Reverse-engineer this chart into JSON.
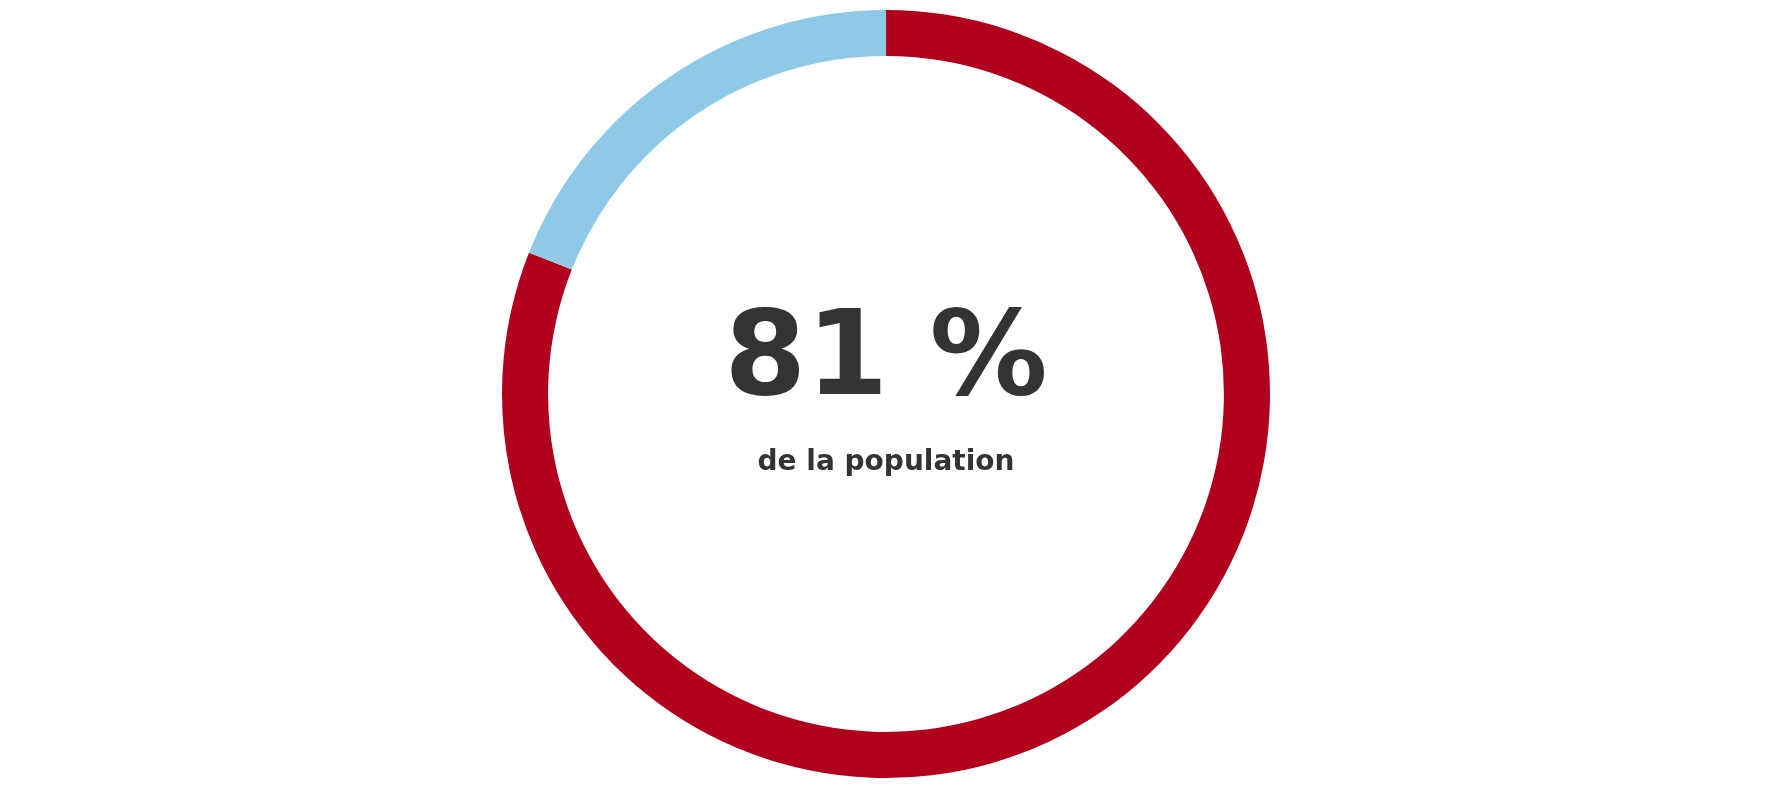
{
  "chart_data": {
    "type": "donut",
    "categories": [
      null,
      null
    ],
    "values": [
      81,
      19
    ],
    "colors": [
      "#b0001e",
      "#8ecae8"
    ],
    "value_labels": [
      "81 %",
      null
    ],
    "annotations": [
      "de la population"
    ]
  }
}
